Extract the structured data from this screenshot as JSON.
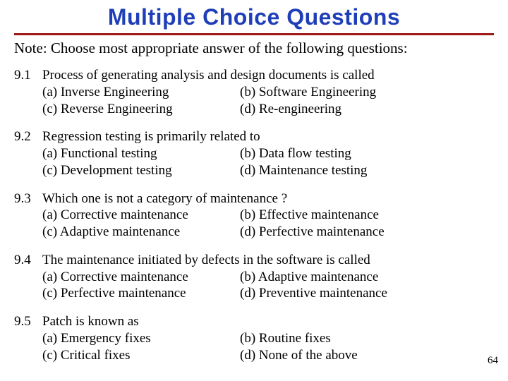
{
  "title": "Multiple Choice Questions",
  "title_color": "#1f3fb8",
  "title_underline_color": "#a01818",
  "note": "Note: Choose most appropriate answer of the following questions:",
  "page_number": "64",
  "questions": [
    {
      "num": "9.1",
      "text": "Process of generating analysis and design documents is called",
      "a": "(a) Inverse Engineering",
      "b": "(b) Software Engineering",
      "c": "(c) Reverse Engineering",
      "d": "(d) Re-engineering"
    },
    {
      "num": "9.2",
      "text": "Regression testing is primarily related to",
      "a": "(a) Functional testing",
      "b": "(b) Data flow testing",
      "c": "(c) Development testing",
      "d": "(d) Maintenance testing"
    },
    {
      "num": "9.3",
      "text": "Which one is not a category of maintenance ?",
      "a": "(a) Corrective maintenance",
      "b": "(b) Effective maintenance",
      "c": "(c) Adaptive maintenance",
      "d": "(d) Perfective maintenance"
    },
    {
      "num": "9.4",
      "text": "The maintenance initiated by defects in the software is called",
      "a": "(a) Corrective maintenance",
      "b": "(b) Adaptive maintenance",
      "c": "(c) Perfective maintenance",
      "d": "(d) Preventive maintenance"
    },
    {
      "num": "9.5",
      "text": "Patch is known as",
      "a": "(a) Emergency fixes",
      "b": "(b) Routine fixes",
      "c": "(c) Critical fixes",
      "d": "(d) None of the above"
    }
  ]
}
